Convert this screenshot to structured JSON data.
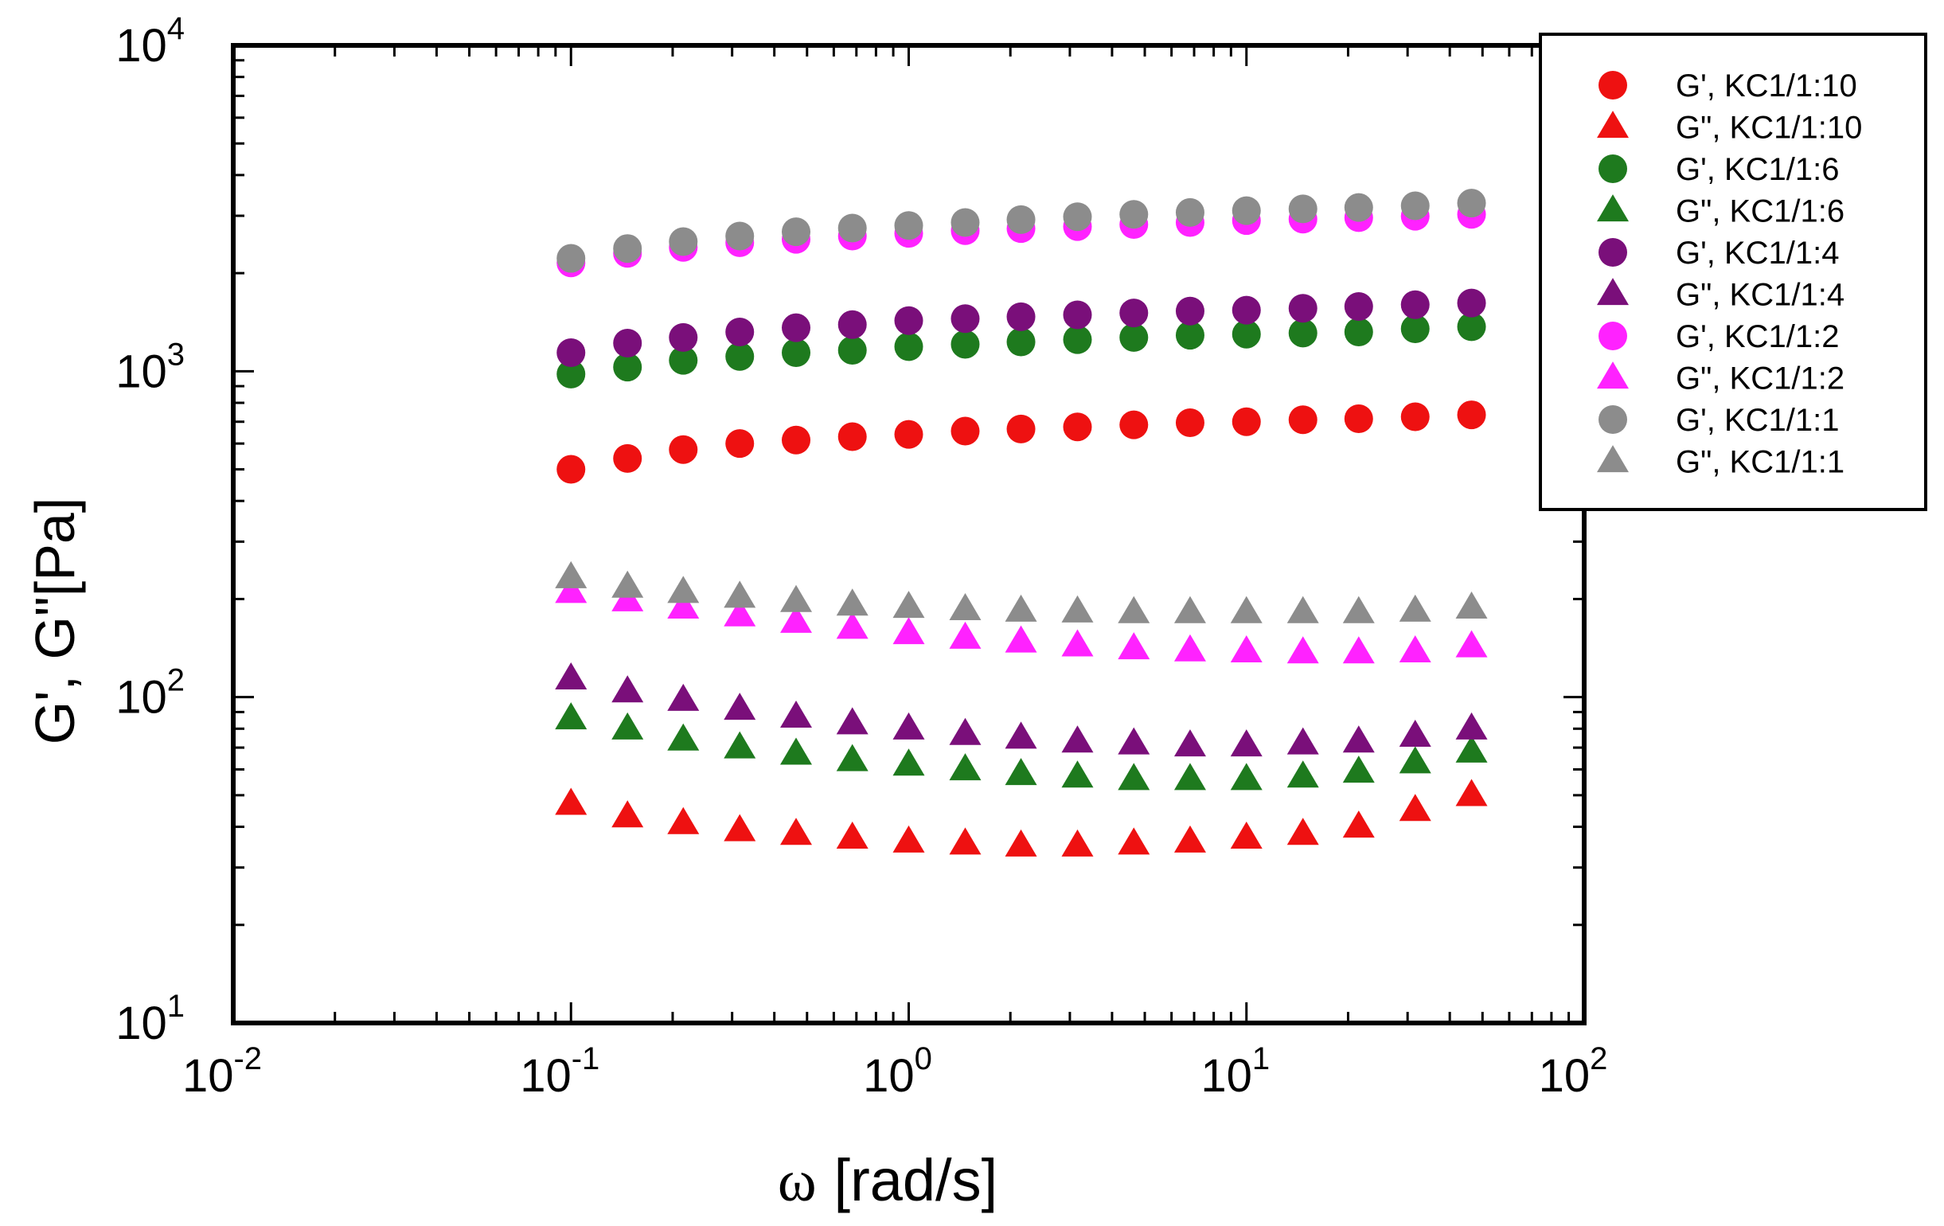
{
  "chart_data": {
    "type": "scatter",
    "title": "",
    "xlabel_symbol": "ω",
    "xlabel": "[rad/s]",
    "ylabel": "G', G\"[Pa]",
    "xscale": "log",
    "yscale": "log",
    "xlim": [
      0.01,
      100
    ],
    "ylim": [
      10,
      10000
    ],
    "x_ticks": [
      {
        "base": "10",
        "exp": "-2",
        "value": 0.01
      },
      {
        "base": "10",
        "exp": "-1",
        "value": 0.1
      },
      {
        "base": "10",
        "exp": "0",
        "value": 1
      },
      {
        "base": "10",
        "exp": "1",
        "value": 10
      },
      {
        "base": "10",
        "exp": "2",
        "value": 100
      }
    ],
    "y_ticks": [
      {
        "base": "10",
        "exp": "1",
        "value": 10
      },
      {
        "base": "10",
        "exp": "2",
        "value": 100
      },
      {
        "base": "10",
        "exp": "3",
        "value": 1000
      },
      {
        "base": "10",
        "exp": "4",
        "value": 10000
      }
    ],
    "legend_position": "top-right",
    "x": [
      0.1,
      0.147,
      0.215,
      0.316,
      0.464,
      0.681,
      1.0,
      1.47,
      2.15,
      3.16,
      4.64,
      6.81,
      10.0,
      14.7,
      21.5,
      31.6,
      46.4
    ],
    "series": [
      {
        "name": "G', KC1/1:10",
        "marker": "circle",
        "color": "#ee1111",
        "values": [
          500,
          540,
          575,
          600,
          615,
          630,
          640,
          655,
          665,
          675,
          685,
          695,
          700,
          710,
          715,
          725,
          735
        ]
      },
      {
        "name": "G\", KC1/1:10",
        "marker": "triangle",
        "color": "#ee1111",
        "values": [
          47,
          43,
          41,
          39,
          38,
          37,
          36,
          35.5,
          35,
          35,
          35.5,
          36,
          37,
          38,
          40,
          45,
          50
        ]
      },
      {
        "name": "G', KC1/1:6",
        "marker": "circle",
        "color": "#1e7a1e",
        "values": [
          980,
          1030,
          1080,
          1110,
          1140,
          1160,
          1190,
          1210,
          1230,
          1250,
          1270,
          1290,
          1300,
          1310,
          1320,
          1350,
          1370
        ]
      },
      {
        "name": "G\", KC1/1:6",
        "marker": "triangle",
        "color": "#1e7a1e",
        "values": [
          86,
          80,
          74,
          70,
          67,
          64,
          62,
          60,
          58,
          57,
          56,
          56,
          56,
          57,
          59,
          63,
          68
        ]
      },
      {
        "name": "G', KC1/1:4",
        "marker": "circle",
        "color": "#7a0f7a",
        "values": [
          1140,
          1220,
          1270,
          1320,
          1360,
          1390,
          1430,
          1450,
          1470,
          1490,
          1510,
          1530,
          1540,
          1560,
          1580,
          1600,
          1620
        ]
      },
      {
        "name": "G\", KC1/1:4",
        "marker": "triangle",
        "color": "#7a0f7a",
        "values": [
          114,
          104,
          98,
          92,
          87,
          83,
          80,
          77,
          75,
          73,
          72,
          71,
          71,
          72,
          73,
          76,
          80
        ]
      },
      {
        "name": "G', KC1/1:2",
        "marker": "circle",
        "color": "#ff22ff",
        "values": [
          2150,
          2300,
          2400,
          2480,
          2540,
          2600,
          2650,
          2700,
          2740,
          2780,
          2820,
          2860,
          2900,
          2930,
          2960,
          2990,
          3030
        ]
      },
      {
        "name": "G\", KC1/1:2",
        "marker": "triangle",
        "color": "#ff22ff",
        "values": [
          210,
          198,
          188,
          178,
          170,
          163,
          157,
          152,
          148,
          144,
          141,
          139,
          138,
          137,
          137,
          138,
          143
        ]
      },
      {
        "name": "G', KC1/1:1",
        "marker": "circle",
        "color": "#8c8c8c",
        "values": [
          2220,
          2380,
          2500,
          2600,
          2680,
          2750,
          2800,
          2860,
          2920,
          2980,
          3030,
          3070,
          3110,
          3150,
          3180,
          3220,
          3280
        ]
      },
      {
        "name": "G\", KC1/1:1",
        "marker": "triangle",
        "color": "#8c8c8c",
        "values": [
          233,
          218,
          210,
          203,
          197,
          192,
          189,
          186,
          184,
          183,
          182,
          182,
          182,
          182,
          182,
          184,
          188
        ]
      }
    ]
  }
}
